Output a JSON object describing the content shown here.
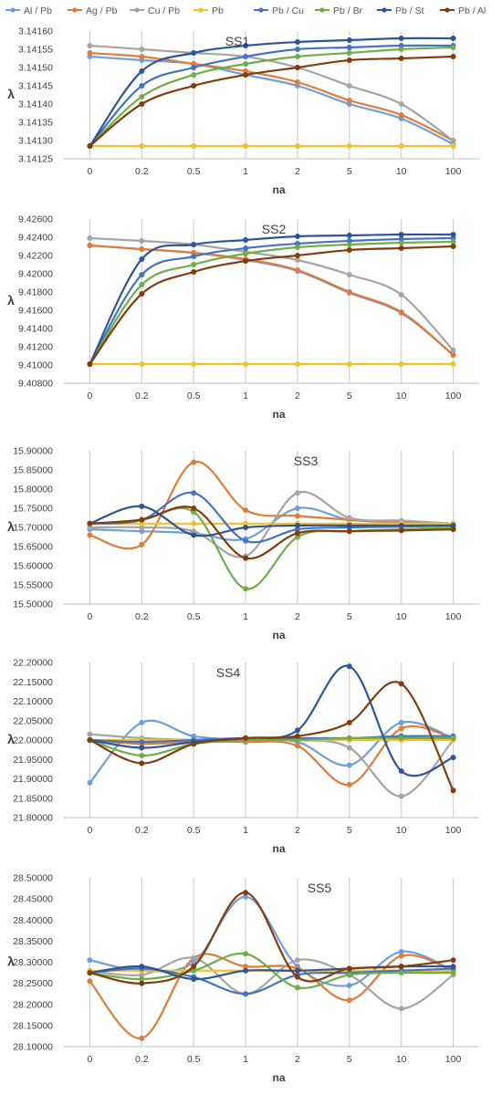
{
  "legend": [
    {
      "name": "Al / Pb",
      "color": "#6f9fd8"
    },
    {
      "name": "Ag / Pb",
      "color": "#e07b39"
    },
    {
      "name": "Cu / Pb",
      "color": "#a5a5a5"
    },
    {
      "name": "Pb",
      "color": "#f2c12e"
    },
    {
      "name": "Pb / Cu",
      "color": "#4472c4"
    },
    {
      "name": "Pb / Br",
      "color": "#70ad47"
    },
    {
      "name": "Pb / St",
      "color": "#2f5597"
    },
    {
      "name": "Pb / Al",
      "color": "#843c0c"
    }
  ],
  "chart_data": [
    {
      "type": "line",
      "title": "SS1",
      "xlabel": "na",
      "ylabel": "λ",
      "categories": [
        "0",
        "0.2",
        "0.5",
        "1",
        "2",
        "5",
        "10",
        "100"
      ],
      "ylim": [
        3.14125,
        3.1416
      ],
      "yticks": [
        "3.14125",
        "3.14130",
        "3.14135",
        "3.14140",
        "3.14145",
        "3.14150",
        "3.14155",
        "3.14160"
      ],
      "grid": "vertical",
      "series": [
        {
          "name": "Al / Pb",
          "values": [
            3.14153,
            3.14152,
            3.14151,
            3.14148,
            3.14145,
            3.1414,
            3.14136,
            3.14129
          ]
        },
        {
          "name": "Ag / Pb",
          "values": [
            3.14154,
            3.14153,
            3.14151,
            3.14149,
            3.14146,
            3.14141,
            3.14137,
            3.1413
          ]
        },
        {
          "name": "Cu / Pb",
          "values": [
            3.14156,
            3.14155,
            3.14154,
            3.14153,
            3.1415,
            3.14145,
            3.1414,
            3.1413
          ]
        },
        {
          "name": "Pb",
          "values": [
            3.141285,
            3.141285,
            3.141285,
            3.141285,
            3.141285,
            3.141285,
            3.141285,
            3.141285
          ]
        },
        {
          "name": "Pb / Cu",
          "values": [
            3.141285,
            3.14145,
            3.1415,
            3.14153,
            3.14155,
            3.141555,
            3.14156,
            3.14156
          ]
        },
        {
          "name": "Pb / Br",
          "values": [
            3.141285,
            3.14142,
            3.14148,
            3.14151,
            3.14153,
            3.14154,
            3.14155,
            3.141555
          ]
        },
        {
          "name": "Pb / St",
          "values": [
            3.141285,
            3.14149,
            3.14154,
            3.14156,
            3.14157,
            3.141575,
            3.14158,
            3.14158
          ]
        },
        {
          "name": "Pb / Al",
          "values": [
            3.141285,
            3.1414,
            3.14145,
            3.14148,
            3.1415,
            3.14152,
            3.141525,
            3.14153
          ]
        }
      ]
    },
    {
      "type": "line",
      "title": "SS2",
      "xlabel": "na",
      "ylabel": "λ",
      "categories": [
        "0",
        "0.2",
        "0.5",
        "1",
        "2",
        "5",
        "10",
        "100"
      ],
      "ylim": [
        9.408,
        9.426
      ],
      "yticks": [
        "9.40800",
        "9.41000",
        "9.41200",
        "9.41400",
        "9.41600",
        "9.41800",
        "9.42000",
        "9.42200",
        "9.42400",
        "9.42600"
      ],
      "grid": "vertical",
      "series": [
        {
          "name": "Al / Pb",
          "values": [
            9.4231,
            9.4227,
            9.4223,
            9.4215,
            9.4203,
            9.4179,
            9.4157,
            9.4111
          ]
        },
        {
          "name": "Ag / Pb",
          "values": [
            9.4231,
            9.4227,
            9.4223,
            9.4216,
            9.4204,
            9.418,
            9.4158,
            9.4111
          ]
        },
        {
          "name": "Cu / Pb",
          "values": [
            9.4239,
            9.4236,
            9.4232,
            9.4224,
            9.4215,
            9.4199,
            9.4177,
            9.4116
          ]
        },
        {
          "name": "Pb",
          "values": [
            9.4101,
            9.4101,
            9.4101,
            9.4101,
            9.4101,
            9.4101,
            9.4101,
            9.4101
          ]
        },
        {
          "name": "Pb / Cu",
          "values": [
            9.4101,
            9.4199,
            9.4219,
            9.4228,
            9.4233,
            9.4236,
            9.4238,
            9.4239
          ]
        },
        {
          "name": "Pb / Br",
          "values": [
            9.4101,
            9.4188,
            9.421,
            9.4222,
            9.4229,
            9.4232,
            9.4234,
            9.4235
          ]
        },
        {
          "name": "Pb / St",
          "values": [
            9.4101,
            9.4216,
            9.4232,
            9.4237,
            9.4241,
            9.4242,
            9.4243,
            9.4243
          ]
        },
        {
          "name": "Pb / Al",
          "values": [
            9.4101,
            9.4178,
            9.4202,
            9.4214,
            9.422,
            9.4226,
            9.4228,
            9.423
          ]
        }
      ]
    },
    {
      "type": "line",
      "title": "SS3",
      "xlabel": "na",
      "ylabel": "λ",
      "categories": [
        "0",
        "0.2",
        "0.5",
        "1",
        "2",
        "5",
        "10",
        "100"
      ],
      "ylim": [
        15.5,
        15.9
      ],
      "yticks": [
        "15.50000",
        "15.55000",
        "15.60000",
        "15.65000",
        "15.70000",
        "15.75000",
        "15.80000",
        "15.85000",
        "15.90000"
      ],
      "grid": "vertical",
      "series": [
        {
          "name": "Al / Pb",
          "values": [
            15.695,
            15.69,
            15.685,
            15.67,
            15.75,
            15.72,
            15.715,
            15.71
          ]
        },
        {
          "name": "Ag / Pb",
          "values": [
            15.68,
            15.655,
            15.87,
            15.745,
            15.73,
            15.72,
            15.712,
            15.71
          ]
        },
        {
          "name": "Cu / Pb",
          "values": [
            15.7,
            15.7,
            15.69,
            15.625,
            15.79,
            15.725,
            15.718,
            15.71
          ]
        },
        {
          "name": "Pb",
          "values": [
            15.71,
            15.71,
            15.71,
            15.71,
            15.71,
            15.71,
            15.71,
            15.71
          ]
        },
        {
          "name": "Pb / Cu",
          "values": [
            15.71,
            15.72,
            15.79,
            15.665,
            15.695,
            15.7,
            15.702,
            15.705
          ]
        },
        {
          "name": "Pb / Br",
          "values": [
            15.71,
            15.72,
            15.74,
            15.54,
            15.675,
            15.69,
            15.695,
            15.7
          ]
        },
        {
          "name": "Pb / St",
          "values": [
            15.71,
            15.755,
            15.68,
            15.7,
            15.705,
            15.705,
            15.705,
            15.705
          ]
        },
        {
          "name": "Pb / Al",
          "values": [
            15.71,
            15.72,
            15.75,
            15.62,
            15.685,
            15.69,
            15.692,
            15.695
          ]
        }
      ]
    },
    {
      "type": "line",
      "title": "SS4",
      "xlabel": "na",
      "ylabel": "λ",
      "categories": [
        "0",
        "0.2",
        "0.5",
        "1",
        "2",
        "5",
        "10",
        "100"
      ],
      "ylim": [
        21.8,
        22.2
      ],
      "yticks": [
        "21.80000",
        "21.85000",
        "21.90000",
        "21.95000",
        "22.00000",
        "22.05000",
        "22.10000",
        "22.15000",
        "22.20000"
      ],
      "grid": "vertical",
      "series": [
        {
          "name": "Al / Pb",
          "values": [
            21.89,
            22.045,
            22.01,
            22.0,
            21.995,
            21.935,
            22.045,
            22.005
          ]
        },
        {
          "name": "Ag / Pb",
          "values": [
            22.0,
            21.99,
            21.995,
            21.995,
            21.985,
            21.885,
            22.03,
            22.005
          ]
        },
        {
          "name": "Cu / Pb",
          "values": [
            22.015,
            22.005,
            22.0,
            22.0,
            22.0,
            21.98,
            21.855,
            22.0
          ]
        },
        {
          "name": "Pb",
          "values": [
            22.0,
            22.0,
            22.0,
            22.0,
            22.0,
            22.0,
            22.0,
            22.0
          ]
        },
        {
          "name": "Pb / Cu",
          "values": [
            22.0,
            21.995,
            22.0,
            22.005,
            22.005,
            22.005,
            22.01,
            22.01
          ]
        },
        {
          "name": "Pb / Br",
          "values": [
            22.0,
            21.96,
            21.99,
            22.0,
            22.0,
            22.005,
            22.005,
            22.005
          ]
        },
        {
          "name": "Pb / St",
          "values": [
            22.0,
            21.98,
            21.995,
            22.005,
            22.025,
            22.19,
            21.92,
            21.955
          ]
        },
        {
          "name": "Pb / Al",
          "values": [
            22.0,
            21.94,
            21.99,
            22.005,
            22.01,
            22.045,
            22.145,
            21.87
          ]
        }
      ]
    },
    {
      "type": "line",
      "title": "SS5",
      "xlabel": "na",
      "ylabel": "λ",
      "categories": [
        "0",
        "0.2",
        "0.5",
        "1",
        "2",
        "5",
        "10",
        "100"
      ],
      "ylim": [
        28.1,
        28.5
      ],
      "yticks": [
        "28.10000",
        "28.15000",
        "28.20000",
        "28.25000",
        "28.30000",
        "28.35000",
        "28.40000",
        "28.45000",
        "28.50000"
      ],
      "grid": "vertical",
      "series": [
        {
          "name": "Al / Pb",
          "values": [
            28.305,
            28.28,
            28.3,
            28.455,
            28.29,
            28.245,
            28.325,
            28.28
          ]
        },
        {
          "name": "Ag / Pb",
          "values": [
            28.255,
            28.12,
            28.31,
            28.29,
            28.285,
            28.21,
            28.315,
            28.28
          ]
        },
        {
          "name": "Cu / Pb",
          "values": [
            28.28,
            28.27,
            28.31,
            28.225,
            28.305,
            28.27,
            28.19,
            28.27
          ]
        },
        {
          "name": "Pb",
          "values": [
            28.28,
            28.28,
            28.28,
            28.28,
            28.28,
            28.28,
            28.28,
            28.28
          ]
        },
        {
          "name": "Pb / Cu",
          "values": [
            28.275,
            28.285,
            28.265,
            28.225,
            28.27,
            28.275,
            28.28,
            28.285
          ]
        },
        {
          "name": "Pb / Br",
          "values": [
            28.275,
            28.26,
            28.28,
            28.32,
            28.24,
            28.27,
            28.275,
            28.275
          ]
        },
        {
          "name": "Pb / St",
          "values": [
            28.275,
            28.29,
            28.26,
            28.28,
            28.28,
            28.285,
            28.29,
            28.29
          ]
        },
        {
          "name": "Pb / Al",
          "values": [
            28.275,
            28.25,
            28.29,
            28.465,
            28.265,
            28.285,
            28.29,
            28.305
          ]
        }
      ]
    }
  ]
}
